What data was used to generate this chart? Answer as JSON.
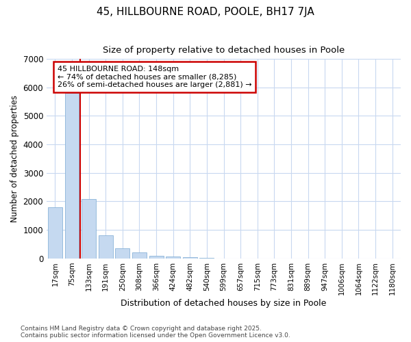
{
  "title1": "45, HILLBOURNE ROAD, POOLE, BH17 7JA",
  "title2": "Size of property relative to detached houses in Poole",
  "xlabel": "Distribution of detached houses by size in Poole",
  "ylabel": "Number of detached properties",
  "bar_color": "#c5d9f0",
  "bar_edge_color": "#8ab4d8",
  "background_color": "#ffffff",
  "grid_color": "#c8d8f0",
  "bin_labels": [
    "17sqm",
    "75sqm",
    "133sqm",
    "191sqm",
    "250sqm",
    "308sqm",
    "366sqm",
    "424sqm",
    "482sqm",
    "540sqm",
    "599sqm",
    "657sqm",
    "715sqm",
    "773sqm",
    "831sqm",
    "889sqm",
    "947sqm",
    "1006sqm",
    "1064sqm",
    "1122sqm",
    "1180sqm"
  ],
  "bar_values": [
    1800,
    5800,
    2080,
    820,
    360,
    210,
    95,
    60,
    40,
    30,
    0,
    0,
    0,
    0,
    0,
    0,
    0,
    0,
    0,
    0,
    0
  ],
  "red_line_x": 1.5,
  "annotation_title": "45 HILLBOURNE ROAD: 148sqm",
  "annotation_line1": "← 74% of detached houses are smaller (8,285)",
  "annotation_line2": "26% of semi-detached houses are larger (2,881) →",
  "red_line_color": "#cc0000",
  "annotation_box_color": "#ffffff",
  "annotation_box_edge": "#cc0000",
  "footer1": "Contains HM Land Registry data © Crown copyright and database right 2025.",
  "footer2": "Contains public sector information licensed under the Open Government Licence v3.0.",
  "ylim": [
    0,
    7000
  ],
  "yticks": [
    0,
    1000,
    2000,
    3000,
    4000,
    5000,
    6000,
    7000
  ]
}
